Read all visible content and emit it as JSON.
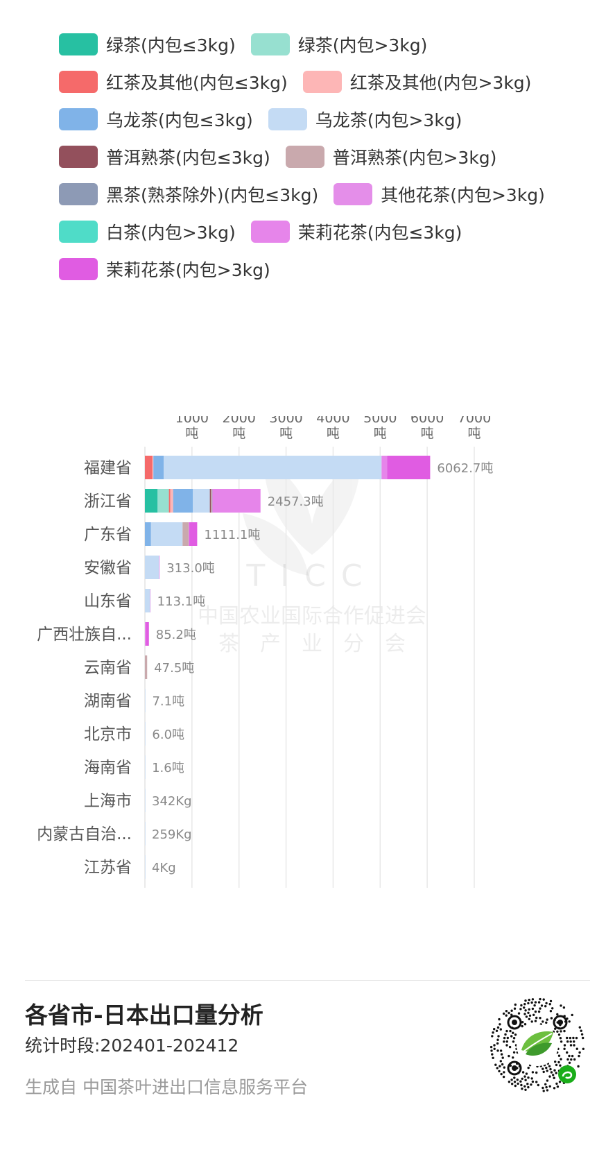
{
  "legend": [
    {
      "label": "绿茶(内包≤3kg)",
      "color": "#27c0a2"
    },
    {
      "label": "绿茶(内包>3kg)",
      "color": "#97e0d0"
    },
    {
      "label": "红茶及其他(内包≤3kg)",
      "color": "#f56a6a"
    },
    {
      "label": "红茶及其他(内包>3kg)",
      "color": "#fdb6b6"
    },
    {
      "label": "乌龙茶(内包≤3kg)",
      "color": "#80b3e8"
    },
    {
      "label": "乌龙茶(内包>3kg)",
      "color": "#c4dbf4"
    },
    {
      "label": "普洱熟茶(内包≤3kg)",
      "color": "#93505c"
    },
    {
      "label": "普洱熟茶(内包>3kg)",
      "color": "#c9a9ad"
    },
    {
      "label": "黑茶(熟茶除外)(内包≤3kg)",
      "color": "#8d9ab5"
    },
    {
      "label": "其他花茶(内包>3kg)",
      "color": "#e48ee9"
    },
    {
      "label": "白茶(内包>3kg)",
      "color": "#4fdcc8"
    },
    {
      "label": "茉莉花茶(内包≤3kg)",
      "color": "#e685ea"
    },
    {
      "label": "茉莉花茶(内包>3kg)",
      "color": "#e05ce2"
    }
  ],
  "chart_data": {
    "type": "bar",
    "orientation": "horizontal",
    "stacked": true,
    "xlim": [
      0,
      7000
    ],
    "x_ticks": [
      {
        "value": 1000,
        "label": "1000",
        "unit": "吨"
      },
      {
        "value": 2000,
        "label": "2000",
        "unit": "吨"
      },
      {
        "value": 3000,
        "label": "3000",
        "unit": "吨"
      },
      {
        "value": 4000,
        "label": "4000",
        "unit": "吨"
      },
      {
        "value": 5000,
        "label": "5000",
        "unit": "吨"
      },
      {
        "value": 6000,
        "label": "6000",
        "unit": "吨"
      },
      {
        "value": 7000,
        "label": "7000",
        "unit": "吨"
      }
    ],
    "grid": true,
    "categories": [
      "福建省",
      "浙江省",
      "广东省",
      "安徽省",
      "山东省",
      "广西壮族自...",
      "云南省",
      "湖南省",
      "北京市",
      "海南省",
      "上海市",
      "内蒙古自治...",
      "江苏省"
    ],
    "totals": [
      6062.7,
      2457.3,
      1111.1,
      313.0,
      113.1,
      85.2,
      47.5,
      7.1,
      6.0,
      1.6,
      0.342,
      0.259,
      0.004
    ],
    "total_labels": [
      "6062.7吨",
      "2457.3吨",
      "1111.1吨",
      "313.0吨",
      "113.1吨",
      "85.2吨",
      "47.5吨",
      "7.1吨",
      "6.0吨",
      "1.6吨",
      "342Kg",
      "259Kg",
      "4Kg"
    ],
    "series": [
      {
        "name": "绿茶(内包≤3kg)",
        "values": [
          0,
          270,
          0,
          0,
          0,
          0,
          0,
          0,
          0,
          0,
          0,
          0,
          0
        ]
      },
      {
        "name": "绿茶(内包>3kg)",
        "values": [
          0,
          240,
          0,
          0,
          0,
          0,
          0,
          0,
          0,
          0,
          0,
          0,
          0
        ]
      },
      {
        "name": "红茶及其他(内包≤3kg)",
        "values": [
          160,
          30,
          0,
          0,
          0,
          0,
          0,
          0,
          0,
          0,
          0,
          0,
          0
        ]
      },
      {
        "name": "红茶及其他(内包>3kg)",
        "values": [
          20,
          60,
          0,
          0,
          0,
          0,
          0,
          0,
          0,
          0,
          0,
          0,
          0
        ]
      },
      {
        "name": "乌龙茶(内包≤3kg)",
        "values": [
          220,
          420,
          130,
          0,
          0,
          0,
          0,
          0,
          0,
          0,
          0,
          0,
          0
        ]
      },
      {
        "name": "乌龙茶(内包>3kg)",
        "values": [
          4630,
          360,
          670,
          300,
          110,
          0,
          0,
          7.1,
          6.0,
          1.6,
          0.342,
          0.259,
          0.004
        ]
      },
      {
        "name": "普洱熟茶(内包≤3kg)",
        "values": [
          0,
          25,
          0,
          0,
          0,
          0,
          0,
          0,
          0,
          0,
          0,
          0,
          0
        ]
      },
      {
        "name": "普洱熟茶(内包>3kg)",
        "values": [
          0,
          20,
          130,
          0,
          0,
          0,
          47.5,
          0,
          0,
          0,
          0,
          0,
          0
        ]
      },
      {
        "name": "黑茶(熟茶除外)(内包≤3kg)",
        "values": [
          0,
          10,
          0,
          0,
          0,
          0,
          0,
          0,
          0,
          0,
          0,
          0,
          0
        ]
      },
      {
        "name": "其他花茶(内包>3kg)",
        "values": [
          0,
          0,
          0,
          13,
          3.1,
          0,
          0,
          0,
          0,
          0,
          0,
          0,
          0
        ]
      },
      {
        "name": "白茶(内包>3kg)",
        "values": [
          0,
          0,
          0,
          0,
          0,
          0,
          0,
          0,
          0,
          0,
          0,
          0,
          0
        ]
      },
      {
        "name": "茉莉花茶(内包≤3kg)",
        "values": [
          120,
          1022.3,
          11.1,
          0,
          0,
          20,
          0,
          0,
          0,
          0,
          0,
          0,
          0
        ]
      },
      {
        "name": "茉莉花茶(内包>3kg)",
        "values": [
          912.7,
          0,
          170,
          0,
          0,
          65.2,
          0,
          0,
          0,
          0,
          0,
          0,
          0
        ]
      }
    ]
  },
  "watermark": {
    "text1": "TICC",
    "text2": "中国农业国际合作促进会",
    "text3": "茶　产　业　分　会"
  },
  "footer": {
    "title": "各省市-日本出口量分析",
    "period": "统计时段:202401-202412",
    "source": "生成自 中国茶叶进出口信息服务平台"
  }
}
